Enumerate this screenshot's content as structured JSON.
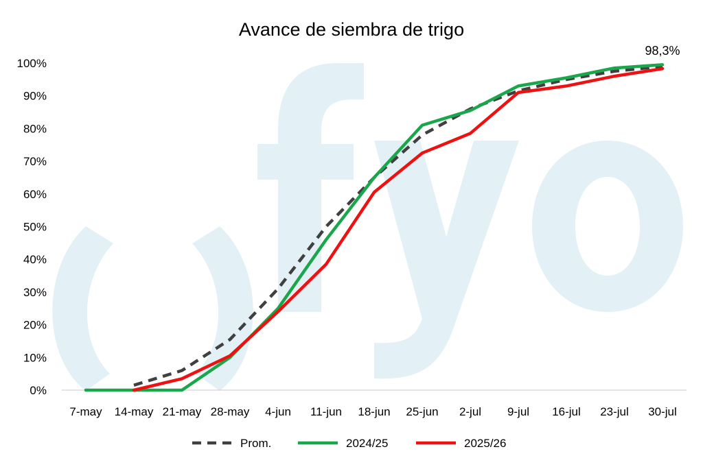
{
  "chart_data": {
    "type": "line",
    "title": "Avance de siembra de trigo",
    "xlabel": "",
    "ylabel": "",
    "categories": [
      "7-may",
      "14-may",
      "21-may",
      "28-may",
      "4-jun",
      "11-jun",
      "18-jun",
      "25-jun",
      "2-jul",
      "9-jul",
      "16-jul",
      "23-jul",
      "30-jul"
    ],
    "y_ticks": [
      "0%",
      "10%",
      "20%",
      "30%",
      "40%",
      "50%",
      "60%",
      "70%",
      "80%",
      "90%",
      "100%"
    ],
    "ylim": [
      0,
      100
    ],
    "grid": false,
    "legend_position": "bottom",
    "series": [
      {
        "name": "Prom.",
        "style": "dashed",
        "color": "#404040",
        "values": [
          null,
          1.5,
          6,
          15.5,
          31,
          50,
          65,
          78,
          86,
          91.5,
          95,
          97.5,
          99
        ]
      },
      {
        "name": "2024/25",
        "style": "solid",
        "color": "#1aa64b",
        "values": [
          0,
          0,
          0,
          10,
          25,
          46,
          65,
          81,
          85.5,
          93,
          95.5,
          98.5,
          99.5
        ]
      },
      {
        "name": "2025/26",
        "style": "solid",
        "color": "#ee1111",
        "values": [
          null,
          0,
          3.5,
          10.5,
          24,
          38.5,
          60.5,
          72.5,
          78.5,
          91,
          93,
          96,
          98.3
        ]
      }
    ],
    "annotations": [
      {
        "text": "98,3%",
        "series": "2025/26",
        "category": "30-jul"
      }
    ],
    "watermark": "fyo"
  }
}
